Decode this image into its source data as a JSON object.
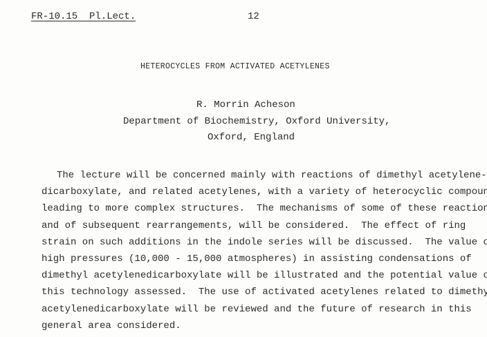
{
  "header": {
    "reference": "FR-10.15  Pl.Lect.",
    "page_number": "12"
  },
  "title": "HETEROCYCLES FROM ACTIVATED ACETYLENES",
  "author": "R. Morrin Acheson",
  "affiliation": {
    "department": "Department of Biochemistry, Oxford University,",
    "location": "Oxford, England"
  },
  "abstract_lines": [
    "The lecture will be concerned mainly with reactions of dimethyl acetylene-",
    "dicarboxylate, and related acetylenes, with a variety of heterocyclic compounds",
    "leading to more complex structures.  The mechanisms of some of these reactions,",
    "and of subsequent rearrangements, will be considered.  The effect of ring",
    "strain on such additions in the indole series will be discussed.  The value of",
    "high pressures (10,000 - 15,000 atmospheres) in assisting condensations of",
    "dimethyl acetylenedicarboxylate will be illustrated and the potential value of",
    "this technology assessed.  The use of activated acetylenes related to dimethyl",
    "acetylenedicarboxylate will be reviewed and the future of research in this",
    "general area considered."
  ]
}
